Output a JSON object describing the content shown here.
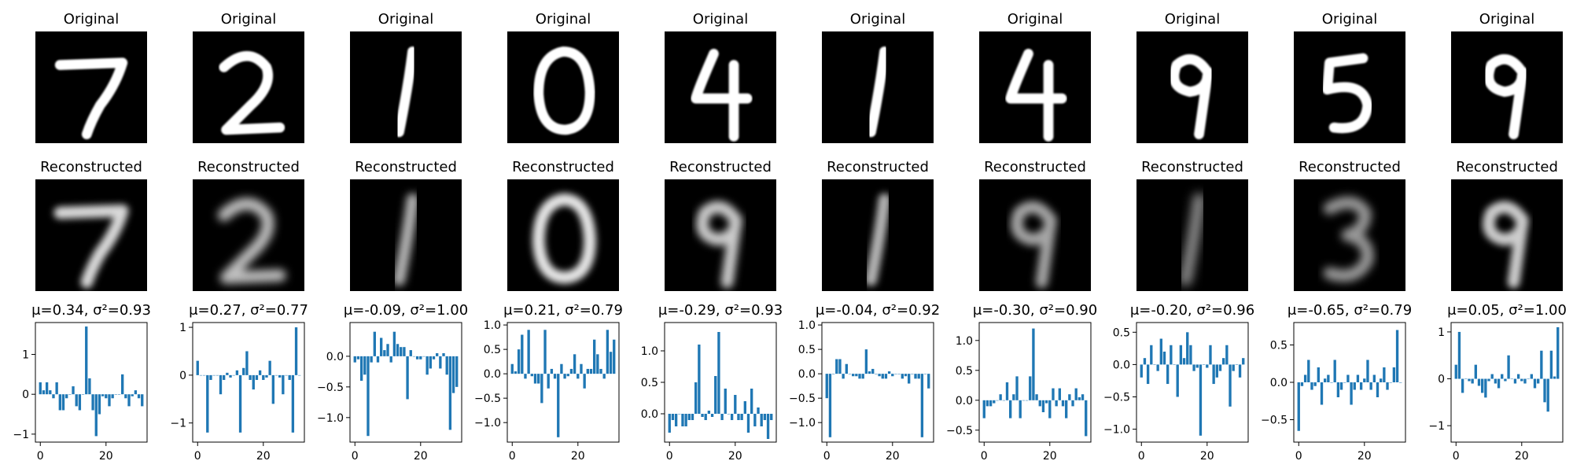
{
  "figure": {
    "original_title": "Original",
    "reconstructed_title": "Reconstructed",
    "bar_color": "#1f77b4"
  },
  "chart_data": [
    {
      "type": "bar",
      "digit": "7",
      "title": "μ=0.34, σ²=0.93",
      "x": [
        0,
        1,
        2,
        3,
        4,
        5,
        6,
        7,
        8,
        9,
        10,
        11,
        12,
        13,
        14,
        15,
        16,
        17,
        18,
        19,
        20,
        21,
        22,
        23,
        24,
        25,
        26,
        27,
        28,
        29,
        30,
        31
      ],
      "values": [
        0.3,
        0.1,
        0.3,
        0.1,
        -0.1,
        0.3,
        -0.4,
        -0.4,
        -0.1,
        0.0,
        0.2,
        -0.3,
        -0.4,
        0.0,
        1.7,
        0.4,
        -0.4,
        -1.05,
        -0.5,
        -0.05,
        -0.1,
        -0.3,
        -0.1,
        0.0,
        0.0,
        0.5,
        -0.1,
        -0.3,
        -0.05,
        0.1,
        -0.1,
        -0.3
      ],
      "xticks": [
        0,
        20
      ],
      "yticks": [
        -1,
        0,
        1
      ],
      "ylim": [
        -1.2,
        1.8
      ],
      "xlim": [
        -1.5,
        32.5
      ]
    },
    {
      "type": "bar",
      "digit": "2",
      "title": "μ=0.27, σ²=0.77",
      "x": [
        0,
        1,
        2,
        3,
        4,
        5,
        6,
        7,
        8,
        9,
        10,
        11,
        12,
        13,
        14,
        15,
        16,
        17,
        18,
        19,
        20,
        21,
        22,
        23,
        24,
        25,
        26,
        27,
        28,
        29,
        30,
        31
      ],
      "values": [
        0.3,
        0.0,
        0.0,
        -1.2,
        -0.1,
        0.0,
        0.0,
        -0.4,
        -0.1,
        0.05,
        -0.05,
        0.0,
        0.1,
        -1.2,
        0.15,
        0.5,
        -0.1,
        -0.3,
        -0.1,
        0.1,
        -0.1,
        -0.05,
        0.3,
        -0.6,
        0.0,
        -0.05,
        -0.4,
        0.0,
        -0.1,
        -1.2,
        1.0,
        0.0
      ],
      "xticks": [
        0,
        20
      ],
      "yticks": [
        -1,
        0,
        1
      ],
      "ylim": [
        -1.4,
        1.1
      ],
      "xlim": [
        -1.5,
        32.5
      ]
    },
    {
      "type": "bar",
      "digit": "1",
      "title": "μ=-0.09, σ²=1.00",
      "x": [
        0,
        1,
        2,
        3,
        4,
        5,
        6,
        7,
        8,
        9,
        10,
        11,
        12,
        13,
        14,
        15,
        16,
        17,
        18,
        19,
        20,
        21,
        22,
        23,
        24,
        25,
        26,
        27,
        28,
        29,
        30,
        31
      ],
      "values": [
        -0.1,
        -0.05,
        -0.4,
        -0.3,
        -1.3,
        -0.1,
        0.4,
        -0.1,
        0.3,
        0.1,
        0.2,
        -0.1,
        0.4,
        0.2,
        0.15,
        0.15,
        -0.7,
        0.1,
        0.0,
        -0.05,
        -0.05,
        0.0,
        -0.3,
        -0.2,
        -0.05,
        0.05,
        -0.2,
        0.05,
        -0.3,
        -1.2,
        -0.6,
        -0.5
      ],
      "xticks": [
        0,
        20
      ],
      "yticks": [
        -1.0,
        -0.5,
        0.0
      ],
      "ylim": [
        -1.4,
        0.55
      ],
      "xlim": [
        -1.5,
        32.5
      ]
    },
    {
      "type": "bar",
      "digit": "0",
      "title": "μ=0.21, σ²=0.79",
      "x": [
        0,
        1,
        2,
        3,
        4,
        5,
        6,
        7,
        8,
        9,
        10,
        11,
        12,
        13,
        14,
        15,
        16,
        17,
        18,
        19,
        20,
        21,
        22,
        23,
        24,
        25,
        26,
        27,
        28,
        29,
        30,
        31
      ],
      "values": [
        0.2,
        0.05,
        0.5,
        0.8,
        -0.1,
        0.9,
        -0.05,
        -0.2,
        -0.2,
        -0.6,
        0.9,
        -0.3,
        0.1,
        -0.1,
        -1.3,
        0.2,
        -0.1,
        -0.05,
        0.1,
        0.4,
        -0.1,
        0.2,
        -0.3,
        0.1,
        0.1,
        0.7,
        0.4,
        0.1,
        -0.1,
        0.9,
        0.45,
        0.7
      ],
      "xticks": [
        0,
        20
      ],
      "yticks": [
        -1.0,
        -0.5,
        0.0,
        0.5,
        1.0
      ],
      "ylim": [
        -1.4,
        1.05
      ],
      "xlim": [
        -1.5,
        32.5
      ]
    },
    {
      "type": "bar",
      "digit": "4",
      "title": "μ=-0.29, σ²=0.93",
      "x": [
        0,
        1,
        2,
        3,
        4,
        5,
        6,
        7,
        8,
        9,
        10,
        11,
        12,
        13,
        14,
        15,
        16,
        17,
        18,
        19,
        20,
        21,
        22,
        23,
        24,
        25,
        26,
        27,
        28,
        29,
        30,
        31
      ],
      "values": [
        -0.3,
        -0.1,
        -0.2,
        0.0,
        -0.2,
        -0.2,
        -0.1,
        -0.1,
        0.5,
        1.1,
        -0.05,
        -0.1,
        0.05,
        -0.05,
        0.6,
        1.3,
        -0.1,
        0.4,
        0.0,
        -0.1,
        0.3,
        -0.1,
        -0.1,
        0.2,
        -0.3,
        0.4,
        -0.2,
        0.1,
        -0.2,
        -0.1,
        -0.4,
        -0.1
      ],
      "xticks": [
        0,
        20
      ],
      "yticks": [
        0.0,
        0.5,
        1.0
      ],
      "ylim": [
        -0.45,
        1.45
      ],
      "xlim": [
        -1.5,
        32.5
      ]
    },
    {
      "type": "bar",
      "digit": "1",
      "title": "μ=-0.04, σ²=0.92",
      "x": [
        0,
        1,
        2,
        3,
        4,
        5,
        6,
        7,
        8,
        9,
        10,
        11,
        12,
        13,
        14,
        15,
        16,
        17,
        18,
        19,
        20,
        21,
        22,
        23,
        24,
        25,
        26,
        27,
        28,
        29,
        30,
        31
      ],
      "values": [
        -0.5,
        -1.3,
        0.0,
        0.3,
        0.3,
        -0.1,
        0.2,
        0.0,
        -0.05,
        -0.05,
        -0.1,
        -0.1,
        0.5,
        0.05,
        0.1,
        0.0,
        -0.05,
        -0.1,
        -0.1,
        0.05,
        -0.05,
        0.0,
        0.0,
        -0.1,
        -0.05,
        -0.2,
        0.0,
        -0.1,
        -0.1,
        -1.3,
        0.0,
        -0.3
      ],
      "xticks": [
        0,
        20
      ],
      "yticks": [
        -1.0,
        -0.5,
        0.0,
        0.5,
        1.0
      ],
      "ylim": [
        -1.4,
        1.05
      ],
      "xlim": [
        -1.5,
        32.5
      ]
    },
    {
      "type": "bar",
      "digit": "4",
      "title": "μ=-0.30, σ²=0.90",
      "x": [
        0,
        1,
        2,
        3,
        4,
        5,
        6,
        7,
        8,
        9,
        10,
        11,
        12,
        13,
        14,
        15,
        16,
        17,
        18,
        19,
        20,
        21,
        22,
        23,
        24,
        25,
        26,
        27,
        28,
        29,
        30,
        31
      ],
      "values": [
        -0.3,
        -0.1,
        -0.1,
        -0.05,
        0.0,
        0.1,
        0.0,
        0.3,
        -0.3,
        0.1,
        0.4,
        -0.3,
        0.0,
        0.0,
        0.4,
        1.2,
        0.1,
        -0.1,
        -0.2,
        -0.05,
        -0.3,
        0.2,
        -0.1,
        0.2,
        -0.1,
        -0.3,
        0.1,
        -0.1,
        0.2,
        0.05,
        0.1,
        -0.6
      ],
      "xticks": [
        0,
        20
      ],
      "yticks": [
        -0.5,
        0.0,
        0.5,
        1.0
      ],
      "ylim": [
        -0.7,
        1.3
      ],
      "xlim": [
        -1.5,
        32.5
      ]
    },
    {
      "type": "bar",
      "digit": "9",
      "title": "μ=-0.20, σ²=0.96",
      "x": [
        0,
        1,
        2,
        3,
        4,
        5,
        6,
        7,
        8,
        9,
        10,
        11,
        12,
        13,
        14,
        15,
        16,
        17,
        18,
        19,
        20,
        21,
        22,
        23,
        24,
        25,
        26,
        27,
        28,
        29,
        30,
        31
      ],
      "values": [
        -0.2,
        0.1,
        -0.3,
        0.3,
        0.0,
        -0.1,
        0.4,
        0.2,
        -0.3,
        0.3,
        0.0,
        -0.5,
        0.3,
        0.1,
        0.5,
        0.3,
        -0.1,
        -0.05,
        -1.1,
        0.0,
        -0.05,
        0.3,
        -0.3,
        -0.2,
        -0.1,
        0.1,
        0.3,
        -0.65,
        -0.1,
        0.0,
        -0.2,
        0.1
      ],
      "xticks": [
        0,
        20
      ],
      "yticks": [
        -1.0,
        -0.5,
        0.0,
        0.5
      ],
      "ylim": [
        -1.2,
        0.65
      ],
      "xlim": [
        -1.5,
        32.5
      ]
    },
    {
      "type": "bar",
      "digit": "5",
      "title": "μ=-0.65, σ²=0.79",
      "x": [
        0,
        1,
        2,
        3,
        4,
        5,
        6,
        7,
        8,
        9,
        10,
        11,
        12,
        13,
        14,
        15,
        16,
        17,
        18,
        19,
        20,
        21,
        22,
        23,
        24,
        25,
        26,
        27,
        28,
        29,
        30,
        31
      ],
      "values": [
        -0.65,
        -0.05,
        0.1,
        0.3,
        -0.1,
        -0.05,
        0.2,
        -0.3,
        0.05,
        0.1,
        0.0,
        0.3,
        -0.2,
        -0.1,
        0.0,
        0.1,
        -0.3,
        -0.1,
        0.1,
        -0.1,
        0.05,
        0.3,
        -0.1,
        0.1,
        -0.2,
        0.05,
        0.2,
        -0.1,
        0.0,
        0.2,
        0.7,
        0.0
      ],
      "xticks": [
        0,
        20
      ],
      "yticks": [
        -0.5,
        0.0,
        0.5
      ],
      "ylim": [
        -0.8,
        0.8
      ],
      "xlim": [
        -1.5,
        32.5
      ]
    },
    {
      "type": "bar",
      "digit": "9",
      "title": "μ=0.05, σ²=1.00",
      "x": [
        0,
        1,
        2,
        3,
        4,
        5,
        6,
        7,
        8,
        9,
        10,
        11,
        12,
        13,
        14,
        15,
        16,
        17,
        18,
        19,
        20,
        21,
        22,
        23,
        24,
        25,
        26,
        27,
        28,
        29,
        30,
        31
      ],
      "values": [
        0.3,
        1.0,
        -0.3,
        0.0,
        -0.05,
        -0.1,
        0.3,
        -0.15,
        -0.3,
        -0.4,
        -0.05,
        0.1,
        -0.1,
        -0.2,
        0.1,
        -0.05,
        0.5,
        0.0,
        -0.1,
        0.1,
        -0.05,
        -0.1,
        0.0,
        0.1,
        -0.2,
        -0.1,
        0.6,
        -0.5,
        -0.7,
        0.6,
        0.05,
        1.1
      ],
      "xticks": [
        0,
        20
      ],
      "yticks": [
        -1,
        0,
        1
      ],
      "ylim": [
        -1.35,
        1.2
      ],
      "xlim": [
        -1.5,
        32.5
      ]
    }
  ]
}
